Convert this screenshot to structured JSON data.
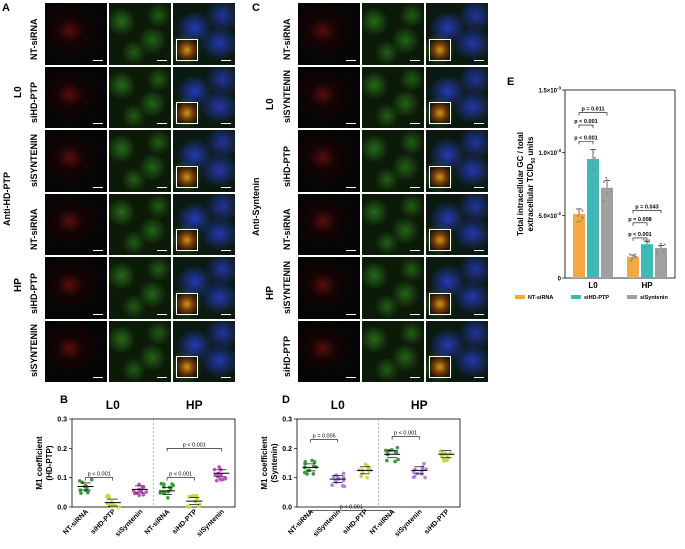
{
  "panel_letters": {
    "a": "A",
    "b": "B",
    "c": "C",
    "d": "D",
    "e": "E"
  },
  "panel_a": {
    "side_label": "Anti-HD-PTP",
    "group_labels": [
      "L0",
      "HP"
    ],
    "row_labels": [
      "NT-siRNA",
      "siHD-PTP",
      "siSYNTENIN",
      "NT-siRNA",
      "siHD-PTP",
      "siSYNTENIN"
    ]
  },
  "panel_c": {
    "side_label": "Anti-Syntenin",
    "group_labels": [
      "L0",
      "HP"
    ],
    "row_labels": [
      "NT-siRNA",
      "siSYNTENIN",
      "siHD-PTP",
      "NT-siRNA",
      "siSYNTENIN",
      "siHD-PTP"
    ]
  },
  "colors": {
    "nt": "#f5a742",
    "hd": "#3fb8b8",
    "syn": "#a0a0a0",
    "green_dot": "#3a9a3a",
    "yellow_dot": "#c8d84a",
    "pink_dot": "#c050c0",
    "lilac_dot": "#b080e0"
  },
  "chart_data": [
    {
      "type": "scatter",
      "id": "B",
      "ylabel": "M1 coefficient (HD-PTP)",
      "groups": [
        "L0",
        "HP"
      ],
      "categories": [
        "NT-siRNA",
        "siHD-PTP",
        "siSyntenin",
        "NT-siRNA",
        "siHD-PTP",
        "siSyntenin"
      ],
      "means": [
        0.07,
        0.015,
        0.06,
        0.055,
        0.02,
        0.115
      ],
      "ylim": [
        0,
        0.3
      ],
      "yticks": [
        "0.0",
        "0.1",
        "0.2",
        "0.3"
      ],
      "annotations": [
        "p < 0.001",
        "p < 0.001",
        "p < 0.001"
      ]
    },
    {
      "type": "scatter",
      "id": "D",
      "ylabel": "M1 coefficient (Syntenin)",
      "groups": [
        "L0",
        "HP"
      ],
      "categories": [
        "NT-siRNA",
        "siSyntenin",
        "siHD-PTP",
        "NT-siRNA",
        "siSyntenin",
        "siHD-PTP"
      ],
      "means": [
        0.135,
        0.095,
        0.125,
        0.18,
        0.125,
        0.18
      ],
      "ylim": [
        0,
        0.3
      ],
      "yticks": [
        "0.0",
        "0.1",
        "0.2",
        "0.3"
      ],
      "annotations": [
        "p = 0.005",
        "p < 0.001",
        "p < 0.001"
      ]
    },
    {
      "type": "bar",
      "id": "E",
      "ylabel_line1": "Total intracellular GC / total",
      "ylabel_line2": "extracellular TCID",
      "ylabel_sub": "50",
      "ylabel_end": " units",
      "categories": [
        "L0",
        "HP"
      ],
      "series": [
        {
          "name": "NT-siRNA",
          "values": [
            5.1,
            1.7
          ]
        },
        {
          "name": "siHD-PTP",
          "values": [
            9.5,
            2.7
          ]
        },
        {
          "name": "siSyntenin",
          "values": [
            7.2,
            2.4
          ]
        }
      ],
      "ylim": [
        0,
        15
      ],
      "yticks": [
        "0",
        "5.0×10",
        "1.0×10",
        "1.5×10"
      ],
      "ytick_exps": [
        "",
        "-2",
        "-3",
        "-3"
      ],
      "annotations": [
        "p = 0.011",
        "p < 0.001",
        "p < 0.001",
        "p = 0.043",
        "p = 0.008",
        "p < 0.001"
      ]
    }
  ]
}
